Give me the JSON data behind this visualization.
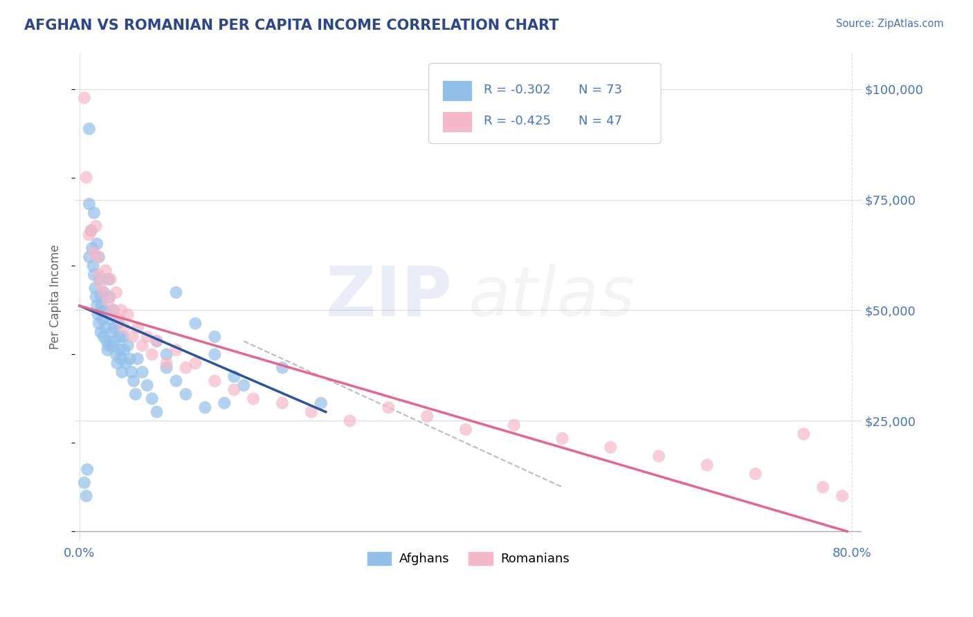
{
  "title": "AFGHAN VS ROMANIAN PER CAPITA INCOME CORRELATION CHART",
  "source_text": "Source: ZipAtlas.com",
  "ylabel": "Per Capita Income",
  "xlabel": "",
  "xlim": [
    -0.005,
    0.81
  ],
  "ylim": [
    -2000,
    108000
  ],
  "ytick_positions": [
    0,
    25000,
    50000,
    75000,
    100000
  ],
  "ytick_labels": [
    "",
    "$25,000",
    "$50,000",
    "$75,000",
    "$100,000"
  ],
  "xtick_positions": [
    0.0,
    0.1,
    0.2,
    0.3,
    0.4,
    0.5,
    0.6,
    0.7,
    0.8
  ],
  "xtick_labels": [
    "0.0%",
    "",
    "",
    "",
    "",
    "",
    "",
    "",
    "80.0%"
  ],
  "title_color": "#2B4590",
  "axis_color": "#4472C4",
  "ylabel_color": "#666666",
  "watermark_color_zip": "#4472C4",
  "watermark_color_atlas": "#AAAAAA",
  "legend_r1": "R = -0.302",
  "legend_n1": "N = 73",
  "legend_r2": "R = -0.425",
  "legend_n2": "N = 47",
  "legend_label1": "Afghans",
  "legend_label2": "Romanians",
  "afghan_color": "#92C0EA",
  "romanian_color": "#F5B8C8",
  "afghan_line_color": "#2955A0",
  "romanian_line_color": "#E8648A",
  "background_color": "#FFFFFF",
  "grid_color": "#DDDDDD",
  "afghan_scatter_x": [
    0.005,
    0.007,
    0.008,
    0.01,
    0.01,
    0.01,
    0.012,
    0.013,
    0.014,
    0.015,
    0.015,
    0.016,
    0.017,
    0.018,
    0.018,
    0.019,
    0.02,
    0.02,
    0.021,
    0.022,
    0.022,
    0.023,
    0.024,
    0.025,
    0.025,
    0.026,
    0.027,
    0.028,
    0.029,
    0.03,
    0.03,
    0.031,
    0.032,
    0.033,
    0.034,
    0.035,
    0.036,
    0.037,
    0.038,
    0.039,
    0.04,
    0.041,
    0.042,
    0.043,
    0.044,
    0.045,
    0.046,
    0.048,
    0.05,
    0.052,
    0.054,
    0.056,
    0.058,
    0.06,
    0.065,
    0.07,
    0.075,
    0.08,
    0.09,
    0.1,
    0.11,
    0.13,
    0.15,
    0.1,
    0.12,
    0.14,
    0.16,
    0.08,
    0.09,
    0.17,
    0.14,
    0.21,
    0.25
  ],
  "afghan_scatter_y": [
    11000,
    8000,
    14000,
    91000,
    74000,
    62000,
    68000,
    64000,
    60000,
    72000,
    58000,
    55000,
    53000,
    65000,
    51000,
    49000,
    62000,
    47000,
    57000,
    53000,
    45000,
    51000,
    48000,
    54000,
    44000,
    50000,
    46000,
    43000,
    41000,
    57000,
    42000,
    53000,
    48000,
    45000,
    42000,
    50000,
    46000,
    43000,
    40000,
    38000,
    47000,
    44000,
    41000,
    39000,
    36000,
    44000,
    41000,
    38000,
    42000,
    39000,
    36000,
    34000,
    31000,
    39000,
    36000,
    33000,
    30000,
    27000,
    37000,
    34000,
    31000,
    28000,
    29000,
    54000,
    47000,
    40000,
    35000,
    43000,
    40000,
    33000,
    44000,
    37000,
    29000
  ],
  "romanian_scatter_x": [
    0.005,
    0.007,
    0.01,
    0.012,
    0.015,
    0.017,
    0.019,
    0.02,
    0.022,
    0.025,
    0.027,
    0.03,
    0.032,
    0.035,
    0.038,
    0.04,
    0.043,
    0.046,
    0.05,
    0.055,
    0.06,
    0.065,
    0.07,
    0.075,
    0.08,
    0.09,
    0.1,
    0.11,
    0.12,
    0.14,
    0.16,
    0.18,
    0.21,
    0.24,
    0.28,
    0.32,
    0.36,
    0.4,
    0.45,
    0.5,
    0.55,
    0.6,
    0.65,
    0.7,
    0.75,
    0.77,
    0.79
  ],
  "romanian_scatter_y": [
    98000,
    80000,
    67000,
    68000,
    63000,
    69000,
    62000,
    58000,
    56000,
    54000,
    59000,
    52000,
    57000,
    50000,
    54000,
    48000,
    50000,
    46000,
    49000,
    44000,
    46000,
    42000,
    44000,
    40000,
    43000,
    38000,
    41000,
    37000,
    38000,
    34000,
    32000,
    30000,
    29000,
    27000,
    25000,
    28000,
    26000,
    23000,
    24000,
    21000,
    19000,
    17000,
    15000,
    13000,
    22000,
    10000,
    8000
  ],
  "afghan_line_x": [
    0.0,
    0.255
  ],
  "afghan_line_y": [
    51000,
    27000
  ],
  "romanian_line_x": [
    0.0,
    0.795
  ],
  "romanian_line_y": [
    51000,
    0
  ],
  "dashed_line_x": [
    0.17,
    0.5
  ],
  "dashed_line_y": [
    43000,
    10000
  ]
}
